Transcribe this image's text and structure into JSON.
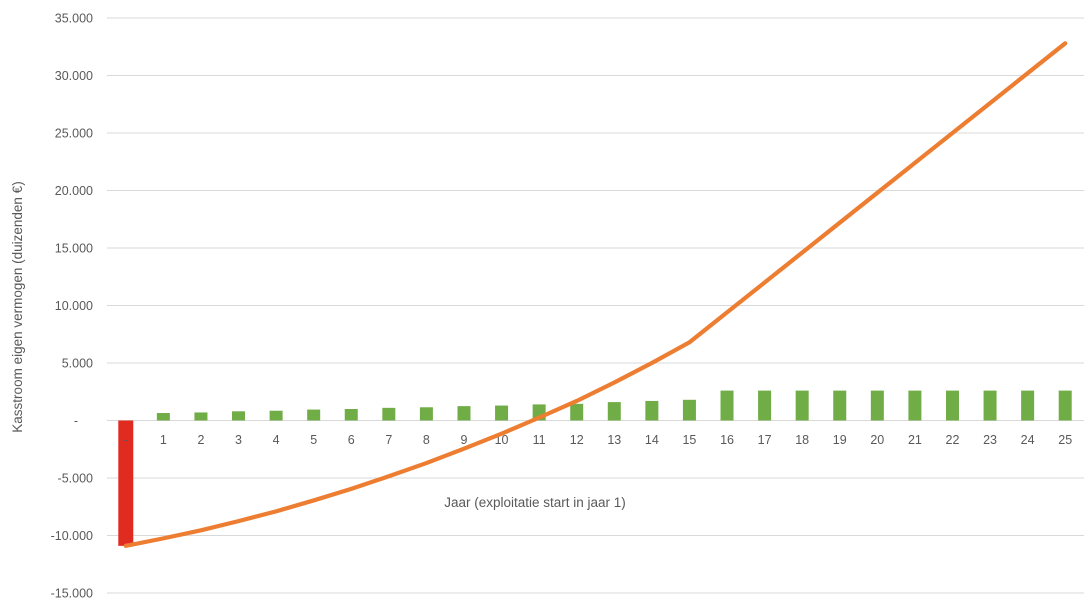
{
  "chart_data": {
    "type": "combo-bar-line",
    "title": "",
    "xlabel": "Jaar (exploitatie start in jaar 1)",
    "ylabel": "Kasstroom eigen vermogen (duizenden €)",
    "ylim": [
      -15000,
      35000
    ],
    "ytick_step": 5000,
    "ytick_labels": [
      "35.000",
      "30.000",
      "25.000",
      "20.000",
      "15.000",
      "10.000",
      "5.000",
      "-",
      "-5.000",
      "-10.000",
      "-15.000"
    ],
    "categories": [
      "-",
      "1",
      "2",
      "3",
      "4",
      "5",
      "6",
      "7",
      "8",
      "9",
      "10",
      "11",
      "12",
      "13",
      "14",
      "15",
      "16",
      "17",
      "18",
      "19",
      "20",
      "21",
      "22",
      "23",
      "24",
      "25"
    ],
    "grid": "horizontal-only",
    "legend": "none",
    "series": [
      {
        "name": "initial-investment-bar",
        "type": "bar",
        "color": "#e02b20",
        "values": [
          -10900,
          null,
          null,
          null,
          null,
          null,
          null,
          null,
          null,
          null,
          null,
          null,
          null,
          null,
          null,
          null,
          null,
          null,
          null,
          null,
          null,
          null,
          null,
          null,
          null,
          null
        ]
      },
      {
        "name": "annual-cashflow-bars",
        "type": "bar",
        "color": "#70ad47",
        "values": [
          null,
          650,
          700,
          800,
          850,
          950,
          1000,
          1100,
          1150,
          1250,
          1300,
          1400,
          1450,
          1600,
          1700,
          1800,
          2600,
          2600,
          2600,
          2600,
          2600,
          2600,
          2600,
          2600,
          2600,
          2600
        ]
      },
      {
        "name": "cumulative-cashflow-line",
        "type": "line",
        "color": "#ed7d31",
        "values": [
          -10900,
          -10250,
          -9550,
          -8750,
          -7900,
          -6950,
          -5950,
          -4850,
          -3700,
          -2450,
          -1150,
          250,
          1700,
          3300,
          5000,
          6800,
          9400,
          12000,
          14600,
          17200,
          19800,
          22400,
          25000,
          27600,
          30200,
          32800
        ]
      }
    ],
    "colors": {
      "grid": "#d9d9d9",
      "label": "#595959",
      "background": "#ffffff"
    }
  }
}
